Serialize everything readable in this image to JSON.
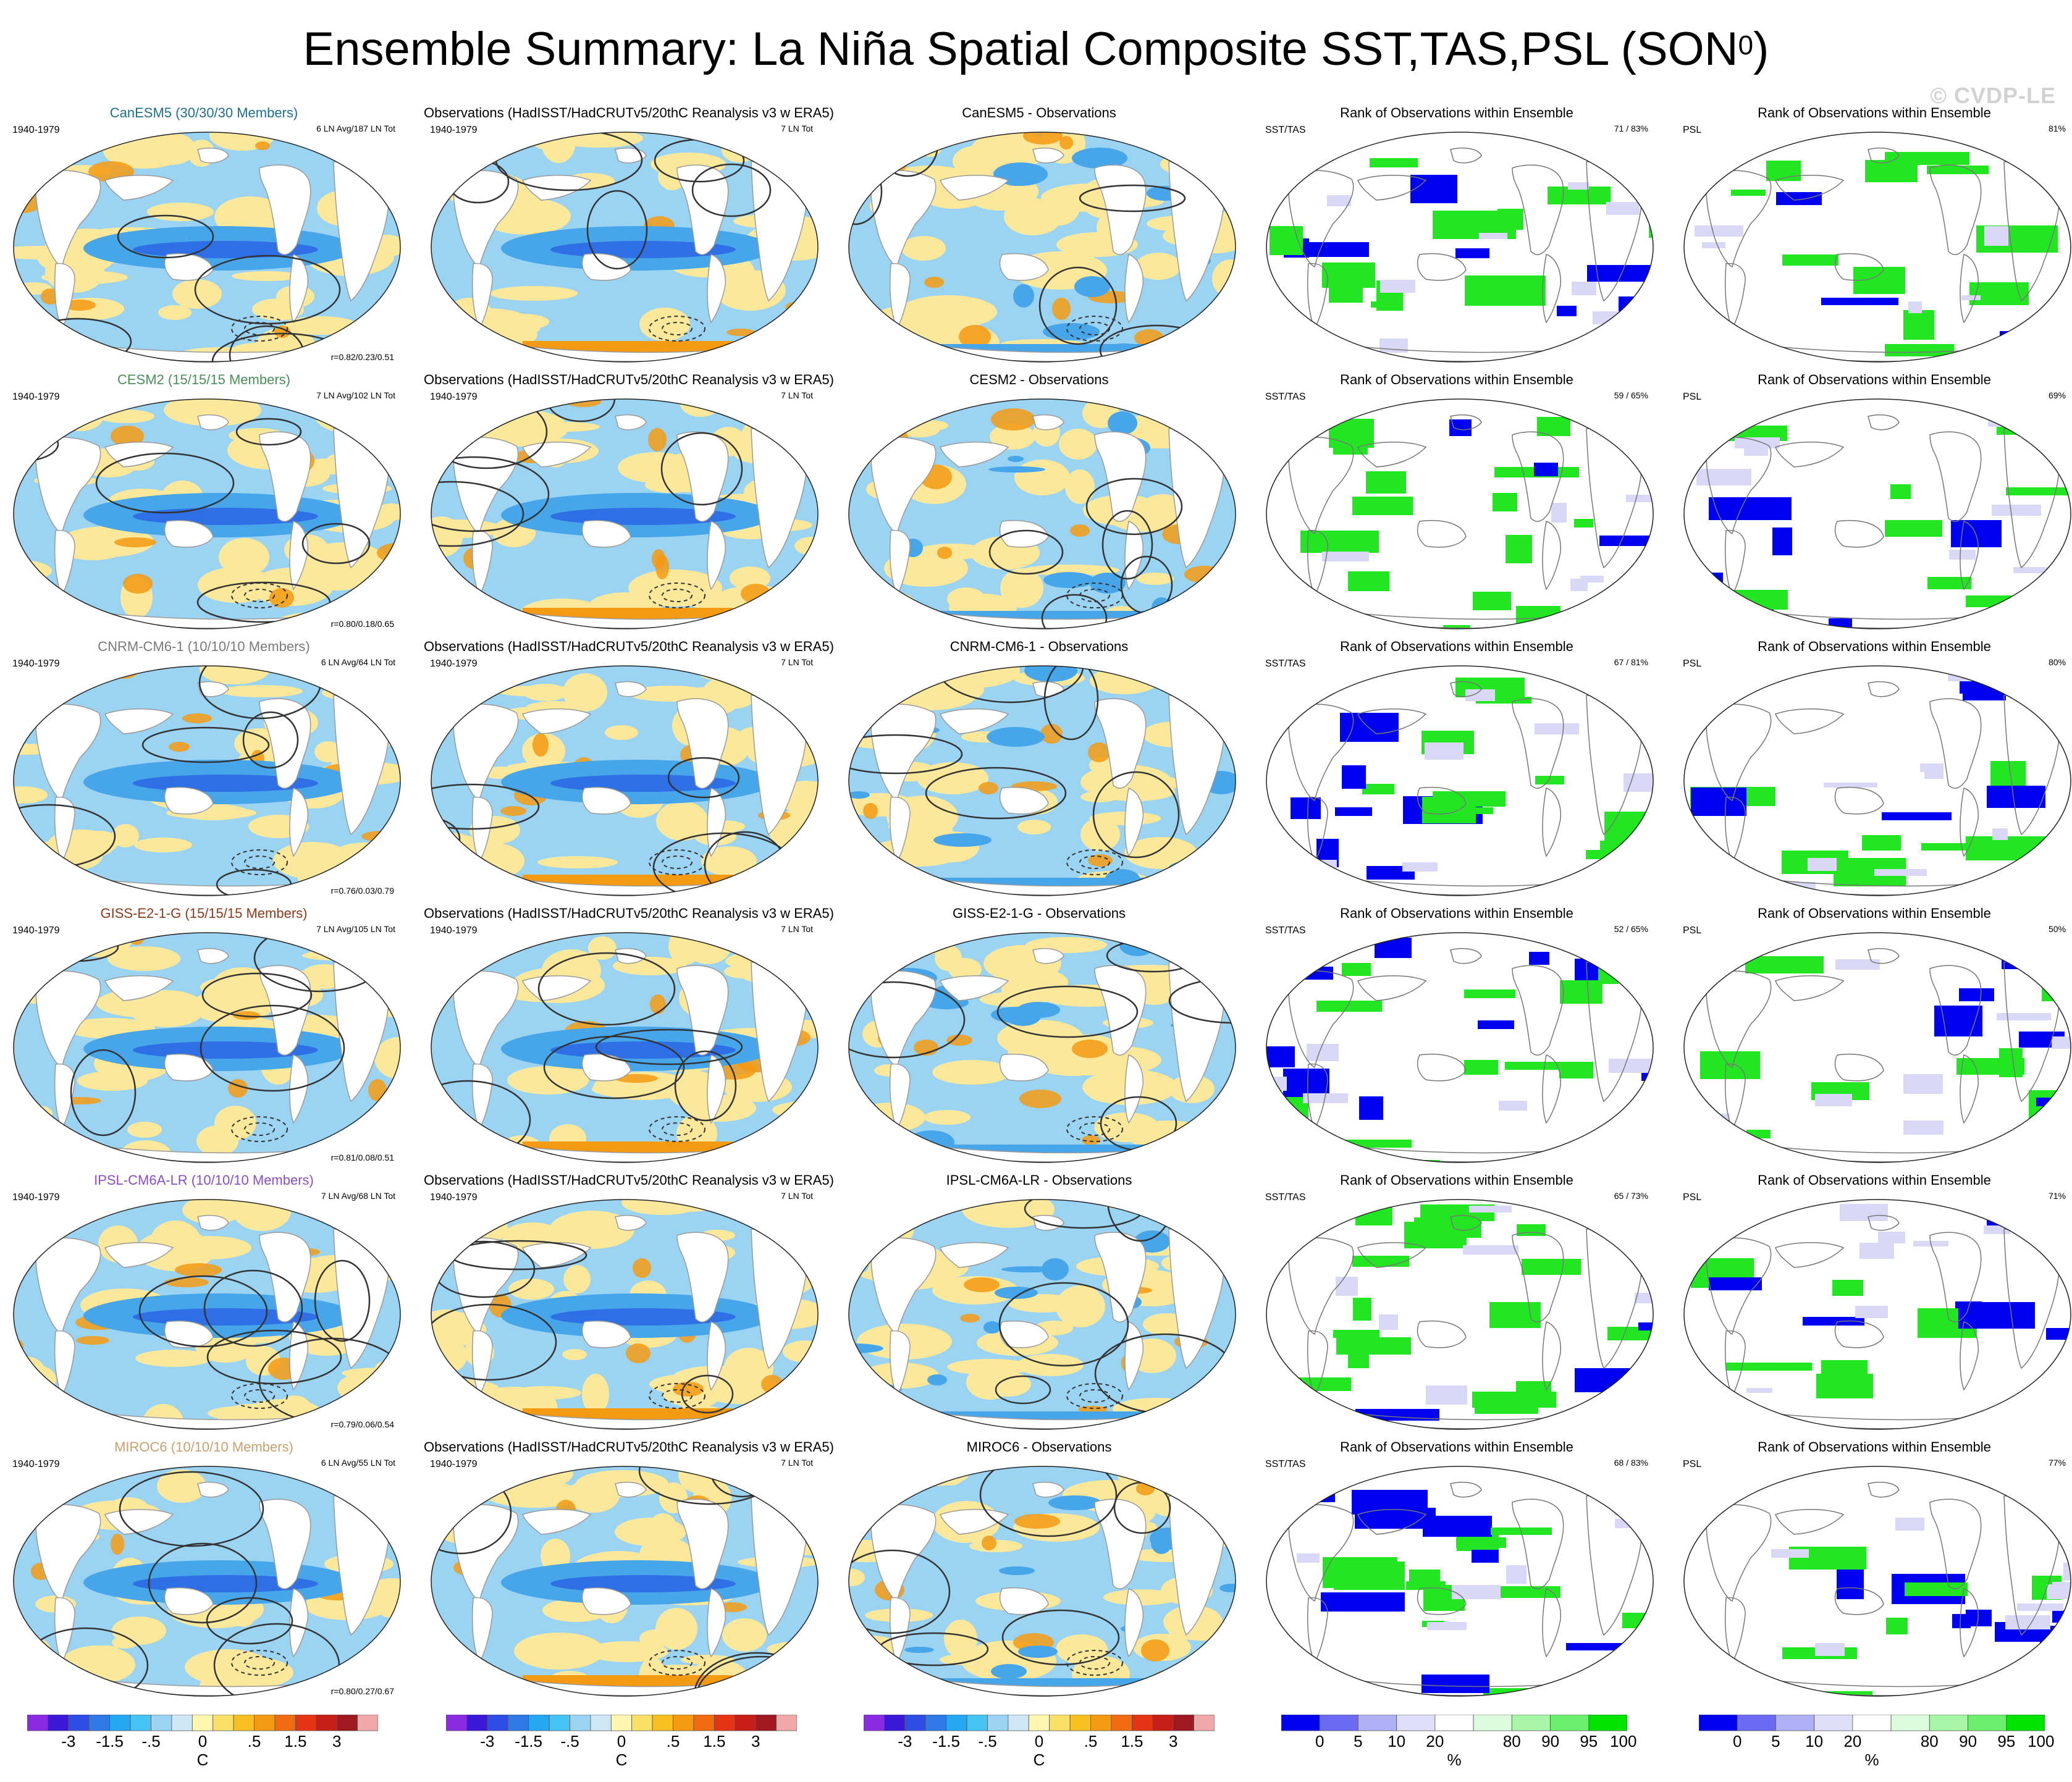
{
  "title": "Ensemble Summary: La Niña Spatial Composite SST,TAS,PSL (SON",
  "title_sup": "0",
  "title_close": ")",
  "watermark": "© CVDP-LE",
  "period": "1940-1979",
  "obs_title": "Observations (HadISST/HadCRUTv5/20thC Reanalysis v3 w ERA5)",
  "obs_count": "7 LN Tot",
  "rank_title": "Rank of Observations within Ensemble",
  "rank_label_ssttas": "SST/TAS",
  "rank_label_psl": "PSL",
  "rows": [
    {
      "model": "CanESM5 (30/30/30 Members)",
      "model_color": "#1f6f8f",
      "ln": "6 LN Avg/187 LN Tot",
      "r": "r=0.82/0.23/0.51",
      "diff": "CanESM5 - Observations",
      "rank_ssttas": "71 /  83%",
      "rank_psl": "81%"
    },
    {
      "model": "CESM2 (15/15/15 Members)",
      "model_color": "#4a8f5a",
      "ln": "7 LN Avg/102 LN Tot",
      "r": "r=0.80/0.18/0.65",
      "diff": "CESM2 - Observations",
      "rank_ssttas": "59 /  65%",
      "rank_psl": "69%"
    },
    {
      "model": "CNRM-CM6-1 (10/10/10 Members)",
      "model_color": "#7a7a7a",
      "ln": "6 LN Avg/64 LN Tot",
      "r": "r=0.76/0.03/0.79",
      "diff": "CNRM-CM6-1 - Observations",
      "rank_ssttas": "67 /  81%",
      "rank_psl": "80%"
    },
    {
      "model": "GISS-E2-1-G (15/15/15 Members)",
      "model_color": "#8b3a1a",
      "ln": "7 LN Avg/105 LN Tot",
      "r": "r=0.81/0.08/0.51",
      "diff": "GISS-E2-1-G - Observations",
      "rank_ssttas": "52 /  65%",
      "rank_psl": "50%"
    },
    {
      "model": "IPSL-CM6A-LR (10/10/10 Members)",
      "model_color": "#8a4fc0",
      "ln": "7 LN Avg/68 LN Tot",
      "r": "r=0.79/0.06/0.54",
      "diff": "IPSL-CM6A-LR - Observations",
      "rank_ssttas": "65 /  73%",
      "rank_psl": "71%"
    },
    {
      "model": "MIROC6 (10/10/10 Members)",
      "model_color": "#c8a070",
      "ln": "6 LN Avg/55 LN Tot",
      "r": "r=0.80/0.27/0.67",
      "diff": "MIROC6 - Observations",
      "rank_ssttas": "68 /  83%",
      "rank_psl": "77%"
    }
  ],
  "cbar_temp": {
    "colors": [
      "#8a2be2",
      "#3a18d8",
      "#2d4de6",
      "#2f7ae6",
      "#25a8f0",
      "#47c3f4",
      "#9bd3f2",
      "#cfe6f7",
      "#fff7b0",
      "#fbe067",
      "#f8c020",
      "#f49a12",
      "#f06b12",
      "#e53414",
      "#c81e18",
      "#a01820",
      "#f0a8a8"
    ],
    "ticks": [
      "-3",
      "-1.5",
      "-.5",
      "0",
      ".5",
      "1.5",
      "3"
    ],
    "unit": "C"
  },
  "cbar_rank": {
    "colors": [
      "#0000f0",
      "#6a6af5",
      "#b0b0f6",
      "#dedef8",
      "#ffffff",
      "#ddfcdd",
      "#a8f5a8",
      "#6cef6c",
      "#00e400"
    ],
    "ticks": [
      "0",
      "5",
      "10",
      "20",
      "80",
      "90",
      "95",
      "100"
    ],
    "unit": "%"
  },
  "palette": {
    "land": "#ffffff",
    "coast_model": "#9a9a9a",
    "ocean_cool": "#9bd3f2",
    "ocean_warm": "#fbe89a",
    "deep_blue": "#2f6fe6",
    "mid_blue": "#47a6ea",
    "orange": "#f49a12",
    "rank_blue": "#0000f0",
    "rank_green": "#22e622",
    "rank_light": "#d9d9f7",
    "contour": "#333333"
  }
}
